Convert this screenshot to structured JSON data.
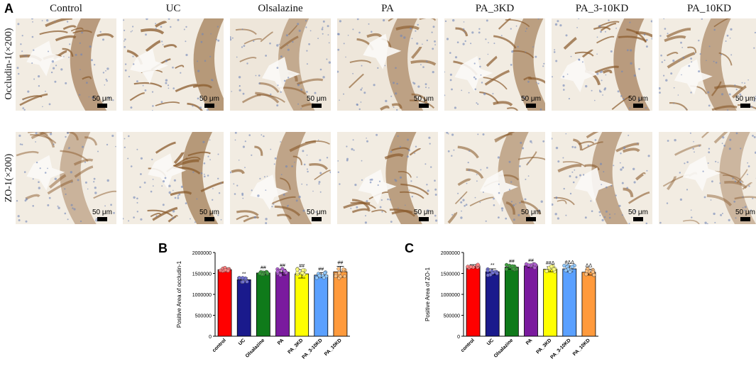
{
  "panel_letters": {
    "a": "A",
    "b": "B",
    "c": "C"
  },
  "columns": [
    "Control",
    "UC",
    "Olsalazine",
    "PA",
    "PA_3KD",
    "PA_3-10KD",
    "PA_10KD"
  ],
  "rows": [
    "Occludin-1(×200)",
    "ZO-1(×200)"
  ],
  "scale_label": "50 μm",
  "colors": {
    "stain_brown": "#8a5a2b",
    "tissue_bg": "#f3efe8",
    "nuclei": "#6f86b8",
    "bars": [
      "#ff0000",
      "#1a1a8c",
      "#0f7a1a",
      "#7a1a9e",
      "#ffff00",
      "#5aa0ff",
      "#ff9a3c"
    ],
    "points": [
      "#ff8080",
      "#7070d0",
      "#40a040",
      "#b060d0",
      "#ffff80",
      "#90c8ff",
      "#ffc080"
    ]
  },
  "chart_data": [
    {
      "type": "bar",
      "panel": "B",
      "categories": [
        "control",
        "UC",
        "Olsalazine",
        "PA",
        "PA_3KD",
        "PA_3-10KD",
        "PA_10KD"
      ],
      "values": [
        1590000,
        1350000,
        1510000,
        1530000,
        1490000,
        1460000,
        1540000
      ],
      "errors": [
        40000,
        50000,
        40000,
        70000,
        100000,
        60000,
        130000
      ],
      "annotations": [
        "",
        "**",
        "##",
        "##",
        "##",
        "##",
        "##"
      ],
      "ylabel": "Positive Area of occludin-1",
      "xlabel": "",
      "ylim": [
        0,
        2000000
      ],
      "yticks": [
        "0",
        "500000",
        "1000000",
        "1500000",
        "2000000"
      ]
    },
    {
      "type": "bar",
      "panel": "C",
      "categories": [
        "control",
        "UC",
        "Olsalazine",
        "PA",
        "PA_3KD",
        "PA_3-10KD",
        "PA_10KD"
      ],
      "values": [
        1670000,
        1540000,
        1650000,
        1680000,
        1600000,
        1610000,
        1530000
      ],
      "errors": [
        40000,
        70000,
        50000,
        40000,
        60000,
        70000,
        70000
      ],
      "annotations": [
        "",
        "**",
        "##",
        "##",
        "##Δ",
        "#ΔΔ",
        "ΔΔ"
      ],
      "ylabel": "Positive Area of ZO-1",
      "xlabel": "",
      "ylim": [
        0,
        2000000
      ],
      "yticks": [
        "0",
        "500000",
        "1000000",
        "1500000",
        "2000000"
      ]
    }
  ]
}
